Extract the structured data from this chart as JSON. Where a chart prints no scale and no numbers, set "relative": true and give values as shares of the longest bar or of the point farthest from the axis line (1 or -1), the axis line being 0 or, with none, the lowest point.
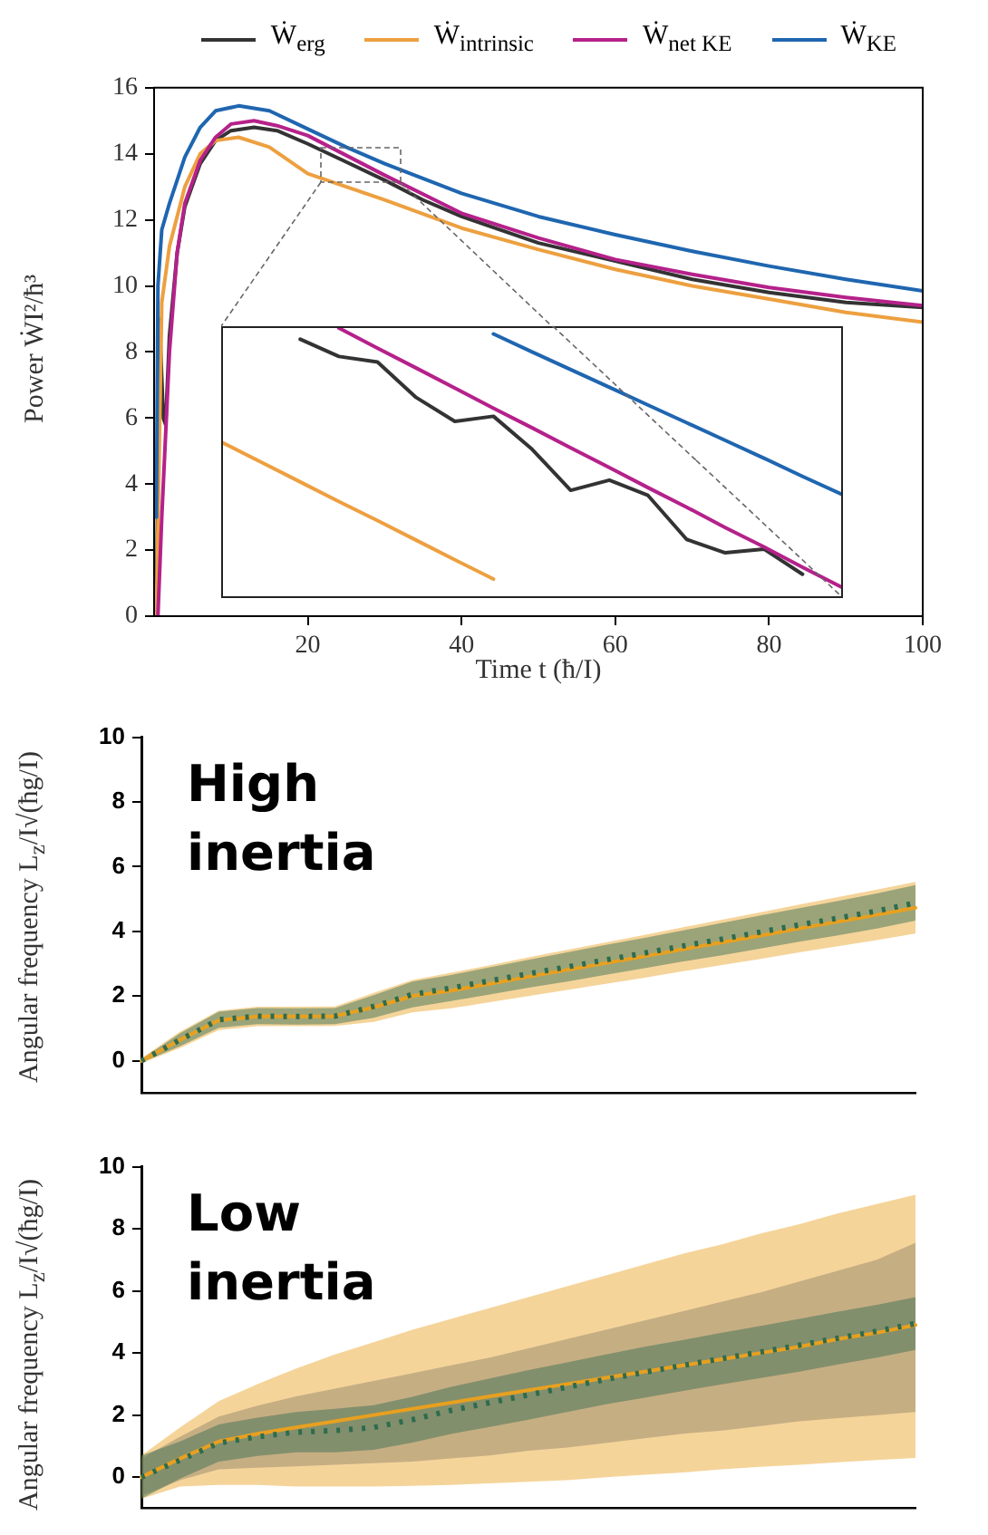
{
  "chart_data": [
    {
      "type": "line",
      "xlabel": "Time t (ħ/I)",
      "ylabel": "Power ẆI²/ħ³",
      "xlim": [
        0,
        100
      ],
      "xticks": [
        20,
        40,
        60,
        80,
        100
      ],
      "ylim": [
        0,
        16
      ],
      "yticks": [
        0,
        2,
        4,
        6,
        8,
        10,
        12,
        14,
        16
      ],
      "legend": "top",
      "series": [
        {
          "name": "Ẇ$_{erg}$",
          "color": "#333333",
          "x": [
            0.3,
            0.7,
            1.2,
            1.5,
            2,
            3,
            4,
            6,
            8,
            10,
            13,
            16,
            20,
            25,
            30,
            35,
            40,
            50,
            60,
            70,
            80,
            90,
            100
          ],
          "values": [
            0,
            9,
            6,
            5.8,
            8.5,
            11,
            12.4,
            13.7,
            14.4,
            14.7,
            14.8,
            14.7,
            14.3,
            13.75,
            13.2,
            12.6,
            12.1,
            11.3,
            10.75,
            10.2,
            9.8,
            9.5,
            9.35
          ]
        },
        {
          "name": "Ẇ$_{intrinsic}$",
          "color": "#eda040",
          "x": [
            0.3,
            1,
            2,
            4,
            6,
            8,
            11,
            15,
            20,
            25,
            30,
            40,
            50,
            60,
            70,
            80,
            90,
            100
          ],
          "values": [
            0,
            9.5,
            11.2,
            13,
            14,
            14.4,
            14.5,
            14.2,
            13.4,
            13,
            12.6,
            11.75,
            11.1,
            10.5,
            10,
            9.6,
            9.2,
            8.9
          ]
        },
        {
          "name": "Ẇ$_{net KE}$",
          "color": "#b5218a",
          "x": [
            0.5,
            1,
            2,
            3,
            4,
            6,
            8,
            10,
            13,
            16,
            20,
            30,
            40,
            50,
            60,
            70,
            80,
            90,
            100
          ],
          "values": [
            0,
            3,
            8,
            11,
            12.5,
            13.8,
            14.5,
            14.9,
            15,
            14.85,
            14.55,
            13.35,
            12.2,
            11.45,
            10.8,
            10.35,
            9.95,
            9.65,
            9.4
          ]
        },
        {
          "name": "Ẇ$_{KE}$",
          "color": "#1f66b0",
          "x": [
            0.3,
            0.5,
            1,
            2,
            4,
            6,
            8,
            11,
            15,
            20,
            25,
            30,
            40,
            50,
            60,
            70,
            80,
            90,
            100
          ],
          "values": [
            3,
            10,
            11.7,
            12.5,
            13.9,
            14.8,
            15.3,
            15.45,
            15.3,
            14.75,
            14.2,
            13.7,
            12.8,
            12.1,
            11.55,
            11.05,
            10.6,
            10.2,
            9.85
          ]
        }
      ]
    },
    {
      "type": "line",
      "relative": true,
      "tick_labels": false,
      "categories": [
        null,
        null,
        null,
        null,
        null,
        null,
        null,
        null,
        null,
        null,
        null,
        null,
        null,
        null,
        null,
        null,
        null
      ],
      "series": [
        {
          "color": "#333333",
          "values": [
            null,
            null,
            0.958,
            0.894,
            0.873,
            0.741,
            0.652,
            0.671,
            0.548,
            0.395,
            0.433,
            0.376,
            0.212,
            0.162,
            0.176,
            0.082,
            null
          ]
        },
        {
          "color": "#eda040",
          "values": [
            0.572,
            0.499,
            0.426,
            0.353,
            0.282,
            0.209,
            0.136,
            0.064,
            null,
            null,
            null,
            null,
            null,
            null,
            null,
            null,
            null
          ]
        },
        {
          "color": "#b5218a",
          "values": [
            null,
            null,
            null,
            1,
            0.925,
            0.851,
            0.776,
            0.701,
            0.628,
            0.553,
            0.48,
            0.405,
            0.332,
            0.256,
            0.184,
            0.108,
            0.035
          ]
        },
        {
          "color": "#1f66b0",
          "values": [
            null,
            null,
            null,
            null,
            null,
            null,
            null,
            0.978,
            0.911,
            0.845,
            0.779,
            0.713,
            0.647,
            0.581,
            0.515,
            0.447,
            0.381
          ]
        }
      ]
    },
    {
      "type": "line",
      "ylabel": "Angular frequency L$_{z}$/I√(ħg/I)",
      "annotations": [
        "High inertia"
      ],
      "tick_labels": "y",
      "ylim": [
        -1,
        10
      ],
      "yticks": [
        0,
        2,
        4,
        6,
        8,
        10
      ],
      "categories": [
        null,
        null,
        null,
        null,
        null,
        null,
        null,
        null,
        null,
        null,
        null,
        null,
        null,
        null,
        null,
        null,
        null,
        null,
        null,
        null,
        null
      ],
      "series": [
        {
          "color": "#e8a020",
          "values": [
            0,
            0.65,
            1.25,
            1.37,
            1.37,
            1.38,
            1.65,
            2.0,
            2.17,
            2.38,
            2.6,
            2.81,
            3.02,
            3.23,
            3.45,
            3.66,
            3.87,
            4.09,
            4.3,
            4.51,
            4.73
          ],
          "lower": [
            -0.08,
            0.4,
            0.95,
            1.07,
            1.07,
            1.08,
            1.2,
            1.5,
            1.62,
            1.81,
            2.0,
            2.19,
            2.38,
            2.57,
            2.77,
            2.96,
            3.15,
            3.35,
            3.54,
            3.73,
            3.93
          ],
          "upper": [
            0.08,
            0.9,
            1.55,
            1.67,
            1.67,
            1.68,
            2.1,
            2.5,
            2.72,
            2.95,
            3.2,
            3.43,
            3.66,
            3.89,
            4.13,
            4.36,
            4.59,
            4.83,
            5.06,
            5.29,
            5.53
          ]
        },
        {
          "color": "#2e6b4f",
          "line_style": "dotted",
          "values": [
            0,
            0.65,
            1.27,
            1.38,
            1.37,
            1.38,
            1.68,
            2.05,
            2.25,
            2.47,
            2.69,
            2.9,
            3.12,
            3.33,
            3.55,
            3.76,
            3.98,
            4.2,
            4.41,
            4.63,
            4.88
          ],
          "lower": [
            -0.05,
            0.45,
            1.02,
            1.13,
            1.12,
            1.13,
            1.33,
            1.65,
            1.85,
            2.05,
            2.26,
            2.45,
            2.66,
            2.86,
            3.07,
            3.26,
            3.47,
            3.68,
            3.88,
            4.09,
            4.33
          ],
          "upper": [
            0.05,
            0.85,
            1.52,
            1.63,
            1.62,
            1.63,
            2.03,
            2.45,
            2.65,
            2.89,
            3.12,
            3.35,
            3.58,
            3.8,
            4.03,
            4.26,
            4.49,
            4.72,
            4.94,
            5.17,
            5.43
          ]
        }
      ]
    },
    {
      "type": "line",
      "ylabel": "Angular frequency L$_{z}$/I√(ħg/I)",
      "annotations": [
        "Low inertia"
      ],
      "tick_labels": "y",
      "ylim": [
        -1,
        10
      ],
      "yticks": [
        0,
        2,
        4,
        6,
        8,
        10
      ],
      "categories": [
        null,
        null,
        null,
        null,
        null,
        null,
        null,
        null,
        null,
        null,
        null,
        null,
        null,
        null,
        null,
        null,
        null,
        null,
        null,
        null,
        null
      ],
      "series": [
        {
          "color": "#e8a020",
          "values": [
            0,
            0.6,
            1.15,
            1.4,
            1.6,
            1.8,
            2.0,
            2.2,
            2.4,
            2.6,
            2.8,
            3.0,
            3.2,
            3.4,
            3.6,
            3.8,
            4.0,
            4.2,
            4.45,
            4.65,
            4.9
          ],
          "lower": [
            -0.7,
            -0.3,
            -0.25,
            -0.25,
            -0.3,
            -0.3,
            -0.3,
            -0.28,
            -0.25,
            -0.2,
            -0.15,
            -0.1,
            0,
            0.08,
            0.15,
            0.25,
            0.33,
            0.4,
            0.48,
            0.55,
            0.62
          ],
          "upper": [
            0.7,
            1.6,
            2.45,
            3.0,
            3.5,
            3.95,
            4.35,
            4.75,
            5.1,
            5.45,
            5.8,
            6.15,
            6.5,
            6.85,
            7.2,
            7.5,
            7.85,
            8.15,
            8.5,
            8.8,
            9.1
          ]
        },
        {
          "color": "#8f8068",
          "values": [
            null,
            null,
            null,
            null,
            null,
            null,
            null,
            null,
            null,
            null,
            null,
            null,
            null,
            null,
            null,
            null,
            null,
            null,
            null,
            null,
            null
          ],
          "lower": [
            -0.6,
            -0.1,
            0.25,
            0.3,
            0.35,
            0.4,
            0.45,
            0.5,
            0.6,
            0.7,
            0.85,
            0.95,
            1.1,
            1.25,
            1.4,
            1.5,
            1.65,
            1.8,
            1.9,
            2.0,
            2.1
          ],
          "upper": [
            0.6,
            1.3,
            1.95,
            2.3,
            2.6,
            2.85,
            3.1,
            3.35,
            3.6,
            3.85,
            4.15,
            4.45,
            4.75,
            5.05,
            5.35,
            5.65,
            5.95,
            6.3,
            6.65,
            7.0,
            7.55
          ]
        },
        {
          "color": "#2e6b4f",
          "line_style": "dotted",
          "values": [
            0,
            0.55,
            1.1,
            1.3,
            1.45,
            1.5,
            1.6,
            1.85,
            2.15,
            2.4,
            2.65,
            2.9,
            3.15,
            3.38,
            3.6,
            3.82,
            4.03,
            4.25,
            4.48,
            4.7,
            4.95
          ],
          "lower": [
            -0.7,
            -0.05,
            0.5,
            0.68,
            0.8,
            0.8,
            0.88,
            1.11,
            1.39,
            1.62,
            1.85,
            2.1,
            2.35,
            2.56,
            2.78,
            2.99,
            3.19,
            3.4,
            3.63,
            3.85,
            4.1
          ],
          "upper": [
            0.7,
            1.15,
            1.7,
            1.92,
            2.1,
            2.2,
            2.32,
            2.59,
            2.91,
            3.18,
            3.45,
            3.7,
            3.95,
            4.2,
            4.42,
            4.65,
            4.87,
            5.1,
            5.33,
            5.55,
            5.8
          ]
        }
      ]
    }
  ]
}
